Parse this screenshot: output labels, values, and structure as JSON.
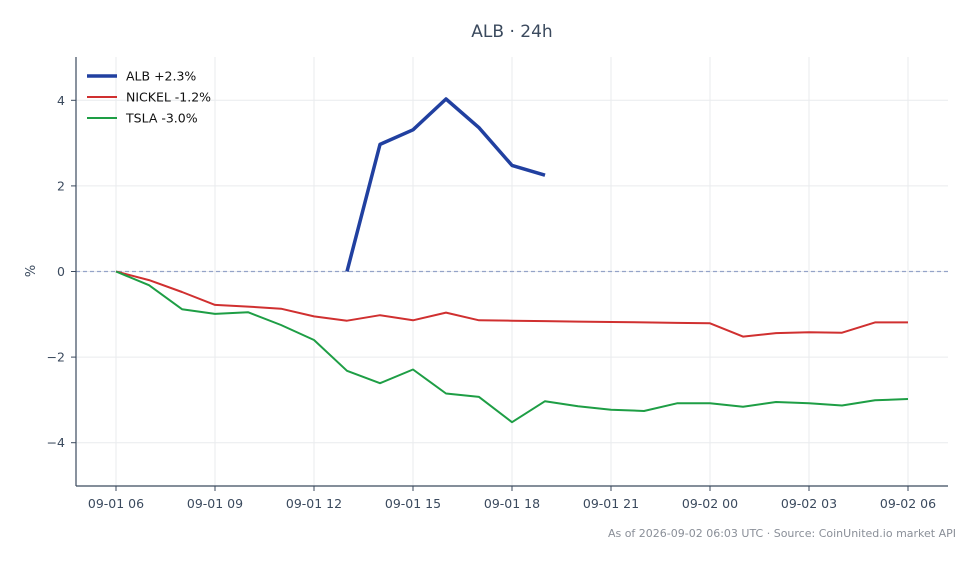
{
  "chart_data": {
    "type": "line",
    "title": "ALB · 24h",
    "xlabel": "",
    "ylabel": "%",
    "x_ticks": [
      "09-01 06",
      "09-01 09",
      "09-01 12",
      "09-01 15",
      "09-01 18",
      "09-01 21",
      "09-02 00",
      "09-02 03",
      "09-02 06"
    ],
    "y_ticks": [
      "4",
      "2",
      "0",
      "−2",
      "−4"
    ],
    "ylim": [
      -5,
      5
    ],
    "grid": true,
    "zero_line": true,
    "legend_position": "top-left",
    "x_hours": [
      0,
      1,
      2,
      3,
      4,
      5,
      6,
      7,
      8,
      9,
      10,
      11,
      12,
      13,
      14,
      15,
      16,
      17,
      18,
      19,
      20,
      21,
      22,
      23,
      24
    ],
    "series": [
      {
        "name": "ALB +2.3%",
        "color": "#2140a0",
        "width": 3.5,
        "values": [
          null,
          null,
          null,
          null,
          null,
          null,
          null,
          0.0,
          2.97,
          3.31,
          4.03,
          3.36,
          2.48,
          2.25,
          null,
          null,
          null,
          null,
          null,
          null,
          null,
          null,
          null,
          null,
          null
        ]
      },
      {
        "name": "NICKEL -1.2%",
        "color": "#d03030",
        "width": 2,
        "values": [
          0.0,
          -0.2,
          -0.48,
          -0.78,
          -0.82,
          -0.87,
          -1.05,
          -1.15,
          -1.02,
          -1.14,
          -0.96,
          -1.14,
          -1.15,
          -1.16,
          -1.17,
          -1.18,
          -1.19,
          -1.2,
          -1.21,
          -1.52,
          -1.44,
          -1.42,
          -1.43,
          -1.19,
          -1.19
        ]
      },
      {
        "name": "TSLA -3.0%",
        "color": "#1e9e45",
        "width": 2,
        "values": [
          0.0,
          -0.32,
          -0.88,
          -0.99,
          -0.95,
          -1.25,
          -1.6,
          -2.32,
          -2.61,
          -2.29,
          -2.85,
          -2.93,
          -3.52,
          -3.03,
          -3.15,
          -3.23,
          -3.26,
          -3.08,
          -3.08,
          -3.16,
          -3.05,
          -3.08,
          -3.13,
          -3.01,
          -2.98
        ]
      }
    ]
  },
  "footer": "As of 2026-09-02 06:03 UTC · Source: CoinUnited.io market API"
}
